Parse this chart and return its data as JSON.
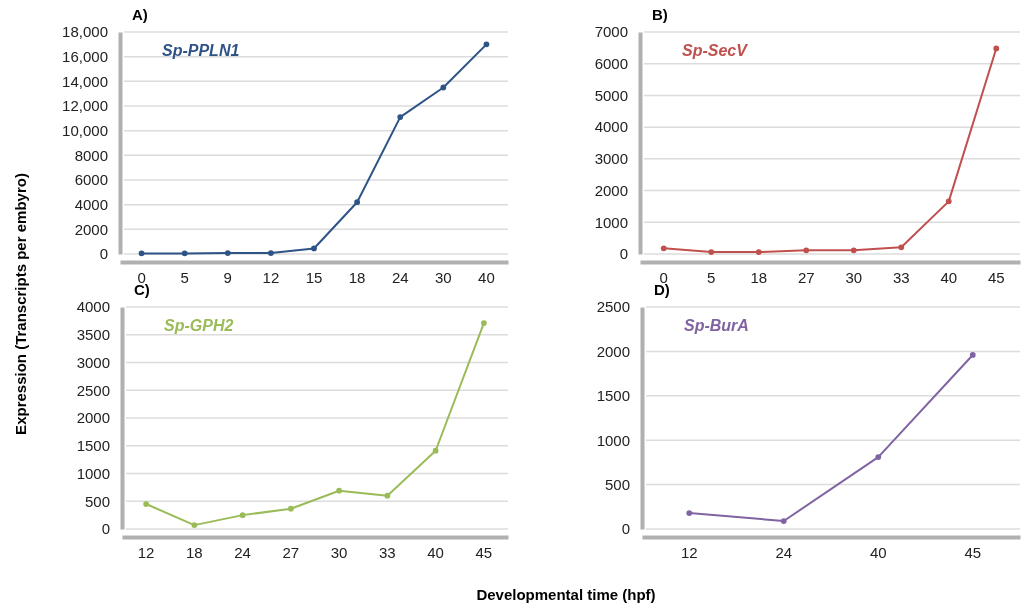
{
  "chart_data": [
    {
      "type": "line",
      "title": "A)",
      "ylabel": "Expression (Transcripts per embyro)",
      "categories": [
        "0",
        "5",
        "9",
        "12",
        "15",
        "18",
        "24",
        "30",
        "40"
      ],
      "series": [
        {
          "name": "Sp-PPLN1",
          "color": "#2e5386",
          "values": [
            50,
            50,
            80,
            80,
            450,
            4200,
            11100,
            13500,
            17000
          ]
        }
      ],
      "ylim": [
        0,
        18000
      ],
      "yticks": [
        0,
        {
          "value": 2000,
          "label": "2000"
        },
        {
          "value": 4000,
          "label": "4000"
        },
        {
          "value": 6000,
          "label": "6000"
        },
        {
          "value": 8000,
          "label": "8000"
        },
        {
          "value": 10000,
          "label": "10,000"
        },
        {
          "value": 12000,
          "label": "12,000"
        },
        {
          "value": 14000,
          "label": "14,000"
        },
        {
          "value": 16000,
          "label": "16,000"
        },
        {
          "value": 18000,
          "label": "18,000"
        }
      ],
      "grid": "y",
      "marker": "circle",
      "line_style": "solid"
    },
    {
      "type": "line",
      "title": "B)",
      "categories": [
        "0",
        "5",
        "18",
        "27",
        "30",
        "33",
        "40",
        "45"
      ],
      "series": [
        {
          "name": "Sp-SecV",
          "color": "#c0504d",
          "values": [
            180,
            60,
            60,
            115,
            115,
            210,
            1660,
            6480
          ]
        }
      ],
      "ylim": [
        0,
        7000
      ],
      "yticks": [
        0,
        1000,
        2000,
        3000,
        4000,
        5000,
        6000,
        7000
      ],
      "grid": "y",
      "marker": "circle",
      "line_style": "solid"
    },
    {
      "type": "line",
      "title": "C)",
      "categories": [
        "12",
        "18",
        "24",
        "27",
        "30",
        "33",
        "40",
        "45"
      ],
      "series": [
        {
          "name": "Sp-GPH2",
          "color": "#9bbb59",
          "values": [
            450,
            70,
            250,
            365,
            690,
            600,
            1410,
            3710
          ]
        }
      ],
      "ylim": [
        0,
        4000
      ],
      "yticks": [
        0,
        500,
        1000,
        1500,
        2000,
        2500,
        3000,
        3500,
        4000
      ],
      "grid": "y",
      "marker": "circle",
      "line_style": "solid"
    },
    {
      "type": "line",
      "title": "D)",
      "xlabel": "Developmental time (hpf)",
      "categories": [
        "12",
        "24",
        "40",
        "45"
      ],
      "series": [
        {
          "name": "Sp-BurA",
          "color": "#8064a2",
          "values": [
            180,
            90,
            810,
            1960
          ]
        }
      ],
      "ylim": [
        0,
        2500
      ],
      "yticks": [
        0,
        500,
        1000,
        1500,
        2000,
        2500
      ],
      "grid": "y",
      "marker": "circle",
      "line_style": "solid"
    }
  ]
}
